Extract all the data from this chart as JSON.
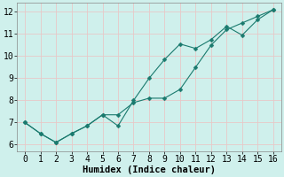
{
  "xlabel": "Humidex (Indice chaleur)",
  "background_color": "#cff0ec",
  "grid_color": "#e8c8c8",
  "line_color": "#1a7a6e",
  "xlim": [
    -0.5,
    16.5
  ],
  "ylim": [
    5.7,
    12.4
  ],
  "xticks": [
    0,
    1,
    2,
    3,
    4,
    5,
    6,
    7,
    8,
    9,
    10,
    11,
    12,
    13,
    14,
    15,
    16
  ],
  "yticks": [
    6,
    7,
    8,
    9,
    10,
    11,
    12
  ],
  "line1_x": [
    0,
    1,
    2,
    3,
    4,
    5,
    6,
    7,
    8,
    9,
    10,
    11,
    12,
    13,
    14,
    15,
    16
  ],
  "line1_y": [
    7.0,
    6.5,
    6.1,
    6.5,
    6.85,
    7.35,
    6.85,
    8.0,
    9.0,
    9.85,
    10.55,
    10.35,
    10.75,
    11.35,
    10.95,
    11.65,
    12.1
  ],
  "line2_x": [
    0,
    1,
    2,
    3,
    4,
    5,
    6,
    7,
    8,
    9,
    10,
    11,
    12,
    13,
    14,
    15,
    16
  ],
  "line2_y": [
    7.0,
    6.5,
    6.1,
    6.5,
    6.85,
    7.35,
    7.35,
    7.9,
    8.1,
    8.1,
    8.5,
    9.5,
    10.5,
    11.2,
    11.5,
    11.8,
    12.1
  ],
  "marker_size": 2.5,
  "line_width": 0.8,
  "font_family": "monospace",
  "xlabel_fontsize": 7.5,
  "tick_fontsize": 7
}
